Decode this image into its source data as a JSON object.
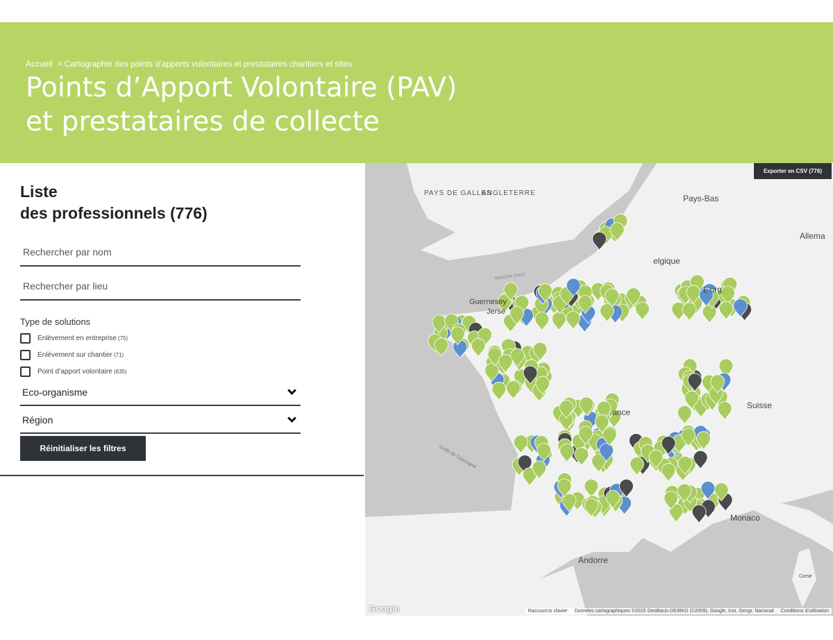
{
  "header": {
    "breadcrumb_home": "Accueil",
    "breadcrumb_sep": ">",
    "breadcrumb_current": "Cartographie des points d’apports volontaires et prestataires chantiers et sites",
    "title_line1": "Points d’Apport Volontaire (PAV)",
    "title_line2": "et prestataires de collecte"
  },
  "panel": {
    "title_line1": "Liste",
    "title_line2": "des professionnels (776)",
    "search_name_placeholder": "Rechercher par nom",
    "search_place_placeholder": "Rechercher par lieu",
    "type_label": "Type de solutions",
    "types": [
      {
        "label": "Enlèvement en entreprise",
        "count": "(75)",
        "checked": false
      },
      {
        "label": "Enlèvement sur chantier",
        "count": "(71)",
        "checked": false
      },
      {
        "label": "Point d’apport volontaire",
        "count": "(635)",
        "checked": false
      }
    ],
    "eco_label": "Eco-organisme",
    "region_label": "Région",
    "reset_label": "Réinitialiser les filtres"
  },
  "map": {
    "export_label": "Exporter en CSV (776)",
    "labels": {
      "pays_de_galles": "PAYS DE GALLES",
      "angleterre": "ANGLETERRE",
      "pays_bas": "Pays-Bas",
      "allemagne": "Allema",
      "belgique": "elgique",
      "luxembourg": "L   urg",
      "guernesey": "Guernesey",
      "jersey": "Jerse",
      "manche": "Manche (mer)",
      "suisse": "Suisse",
      "france": "ance",
      "golfe": "Golfe de Gascogne",
      "monaco": "Monaco",
      "andorre": "Andorre",
      "corse": "Corse"
    },
    "google": "Google",
    "attr_shortcuts": "Raccourcis clavier",
    "attr_data": "Données cartographiques ©2025 GeoBasis-DE/BKG (©2009), Google, Inst. Geogr. Nacional",
    "attr_terms": "Conditions d'utilisation",
    "colors": {
      "pav": "#a9cc5f",
      "entreprise": "#5b8fd0",
      "chantier": "#4a4a4a",
      "land": "#f1f1f1",
      "sea": "#c9c9c9"
    }
  }
}
